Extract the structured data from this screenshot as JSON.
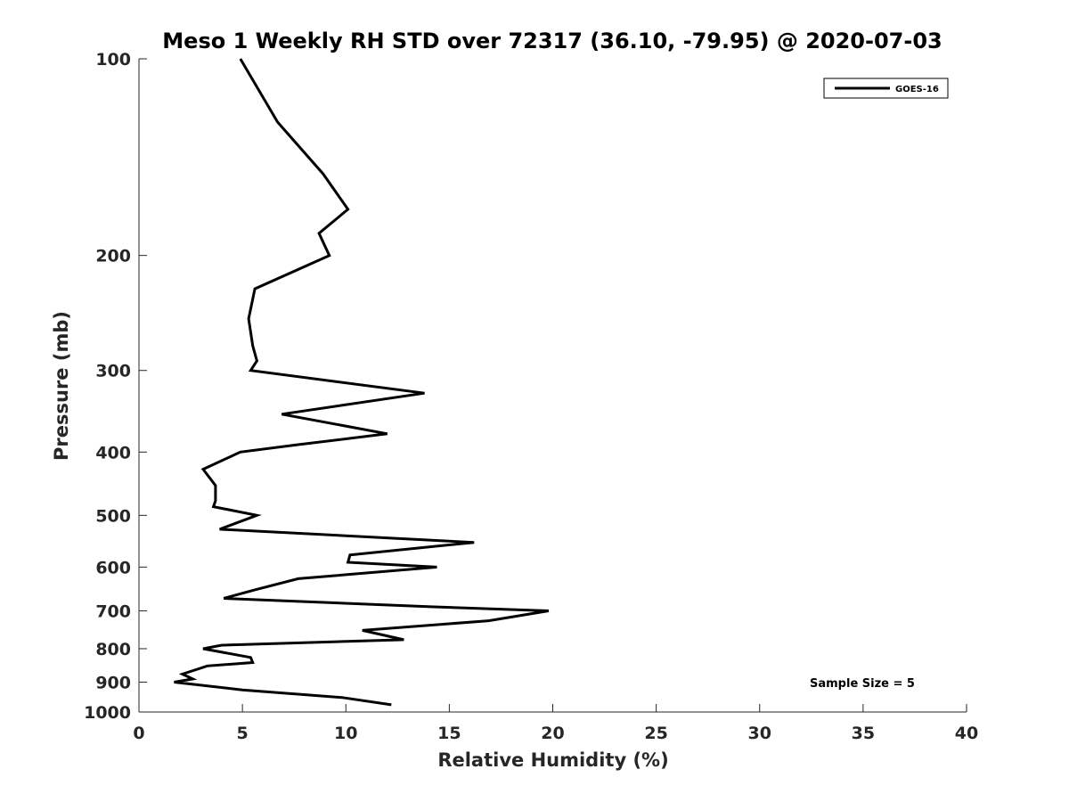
{
  "chart_data": {
    "type": "line",
    "title": "Meso 1 Weekly RH STD over 72317 (36.10, -79.95) @ 2020-07-03",
    "xlabel": "Relative Humidity (%)",
    "ylabel": "Pressure (mb)",
    "xlim": [
      0,
      40
    ],
    "ylim": [
      100,
      1000
    ],
    "y_scale": "log",
    "y_reversed": true,
    "grid": false,
    "legend_position": "top-right",
    "x_ticks": [
      0,
      5,
      10,
      15,
      20,
      25,
      30,
      35,
      40
    ],
    "y_ticks": [
      100,
      200,
      300,
      400,
      500,
      600,
      700,
      800,
      900,
      1000
    ],
    "annotation": "Sample Size = 5",
    "series": [
      {
        "name": "GOES-16",
        "color": "#000000",
        "points": [
          [
            4.9,
            100
          ],
          [
            6.7,
            125
          ],
          [
            8.9,
            150
          ],
          [
            10.1,
            170
          ],
          [
            8.7,
            185
          ],
          [
            9.2,
            200
          ],
          [
            5.6,
            225
          ],
          [
            5.3,
            250
          ],
          [
            5.5,
            275
          ],
          [
            5.7,
            290
          ],
          [
            5.4,
            300
          ],
          [
            13.8,
            325
          ],
          [
            6.9,
            350
          ],
          [
            12.0,
            375
          ],
          [
            7.6,
            390
          ],
          [
            4.9,
            400
          ],
          [
            3.1,
            425
          ],
          [
            3.7,
            450
          ],
          [
            3.7,
            475
          ],
          [
            3.6,
            485
          ],
          [
            5.7,
            500
          ],
          [
            3.9,
            525
          ],
          [
            16.2,
            550
          ],
          [
            10.2,
            575
          ],
          [
            10.1,
            590
          ],
          [
            14.4,
            600
          ],
          [
            7.7,
            625
          ],
          [
            5.6,
            650
          ],
          [
            4.1,
            670
          ],
          [
            14.1,
            690
          ],
          [
            19.8,
            700
          ],
          [
            16.9,
            725
          ],
          [
            10.8,
            750
          ],
          [
            12.8,
            775
          ],
          [
            4.0,
            790
          ],
          [
            3.1,
            800
          ],
          [
            5.4,
            825
          ],
          [
            5.5,
            840
          ],
          [
            3.3,
            850
          ],
          [
            2.1,
            875
          ],
          [
            2.6,
            890
          ],
          [
            1.7,
            900
          ],
          [
            5.0,
            925
          ],
          [
            9.8,
            950
          ],
          [
            12.2,
            975
          ]
        ]
      }
    ]
  }
}
